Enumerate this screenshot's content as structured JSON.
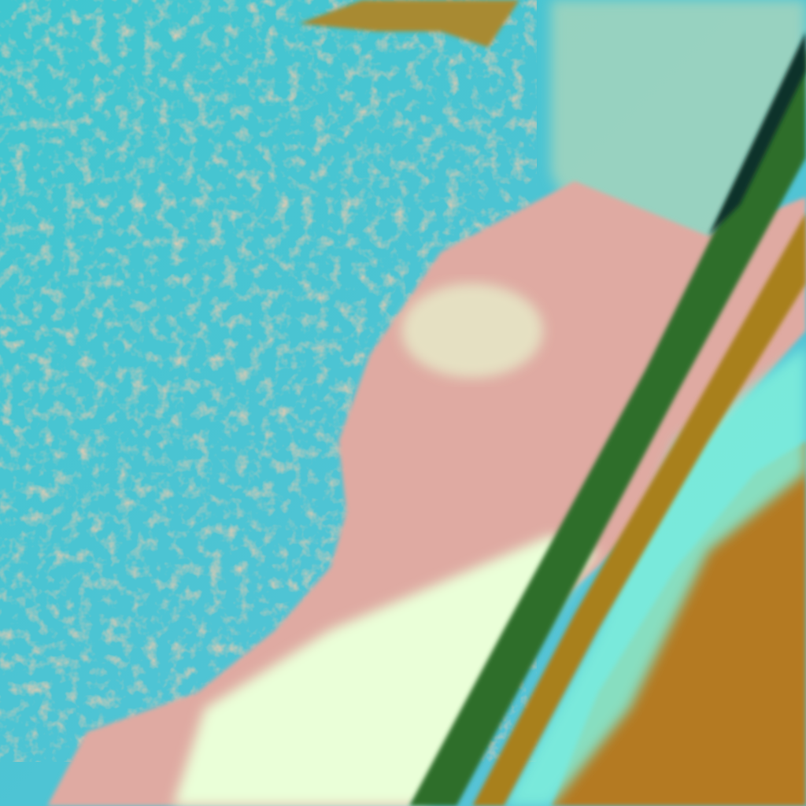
{
  "image": {
    "kind": "false-color satellite imagery",
    "colors": {
      "ocean": "#45c3cf",
      "ocean_light": "#7fd0d6",
      "land": "#e0a8a0",
      "cloud": "#e8ffd8",
      "cloud_cyan": "#7ff5e0",
      "ridge_green": "#2f7a2a",
      "ridge_brown": "#a07a20",
      "desert": "#b8781e",
      "cloud_tan": "#c8a070"
    }
  }
}
